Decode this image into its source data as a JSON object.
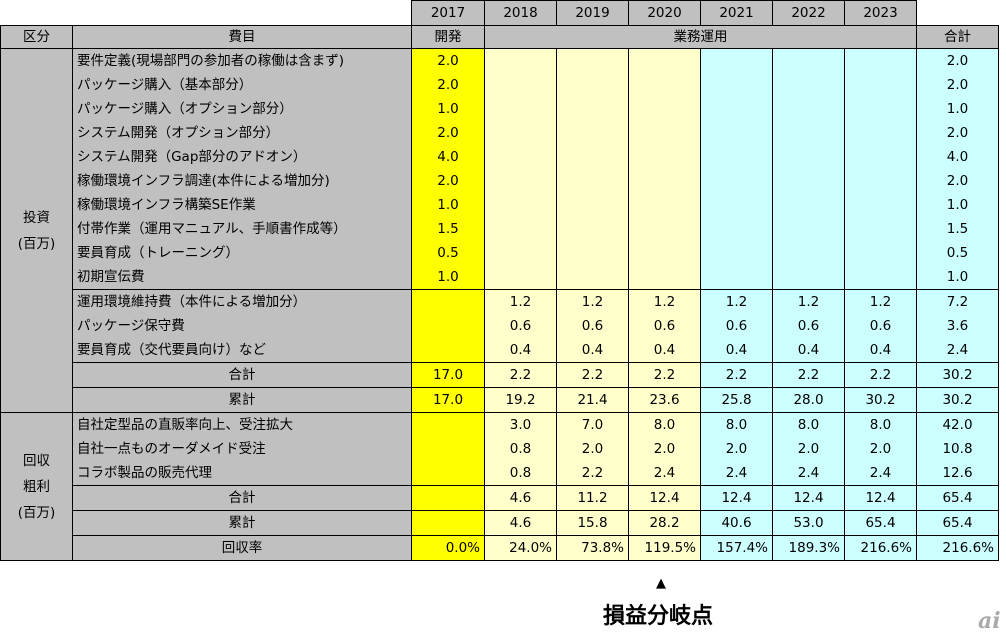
{
  "header": {
    "years": [
      "2017",
      "2018",
      "2019",
      "2020",
      "2021",
      "2022",
      "2023"
    ],
    "category_label": "区分",
    "item_label": "費目",
    "dev_label": "開発",
    "ops_label": "業務運用",
    "total_label": "合計"
  },
  "investment": {
    "category": [
      "投資",
      "(百万)"
    ],
    "initial_items": [
      {
        "label": "要件定義(現場部門の参加者の稼働は含まず)",
        "values": [
          "2.0",
          "",
          "",
          "",
          "",
          "",
          ""
        ],
        "total": "2.0"
      },
      {
        "label": "パッケージ購入（基本部分）",
        "values": [
          "2.0",
          "",
          "",
          "",
          "",
          "",
          ""
        ],
        "total": "2.0"
      },
      {
        "label": "パッケージ購入（オプション部分）",
        "values": [
          "1.0",
          "",
          "",
          "",
          "",
          "",
          ""
        ],
        "total": "1.0"
      },
      {
        "label": "システム開発（オプション部分）",
        "values": [
          "2.0",
          "",
          "",
          "",
          "",
          "",
          ""
        ],
        "total": "2.0"
      },
      {
        "label": "システム開発（Gap部分のアドオン）",
        "values": [
          "4.0",
          "",
          "",
          "",
          "",
          "",
          ""
        ],
        "total": "4.0"
      },
      {
        "label": "稼働環境インフラ調達(本件による増加分)",
        "values": [
          "2.0",
          "",
          "",
          "",
          "",
          "",
          ""
        ],
        "total": "2.0"
      },
      {
        "label": "稼働環境インフラ構築SE作業",
        "values": [
          "1.0",
          "",
          "",
          "",
          "",
          "",
          ""
        ],
        "total": "1.0"
      },
      {
        "label": "付帯作業（運用マニュアル、手順書作成等）",
        "values": [
          "1.5",
          "",
          "",
          "",
          "",
          "",
          ""
        ],
        "total": "1.5"
      },
      {
        "label": "要員育成（トレーニング）",
        "values": [
          "0.5",
          "",
          "",
          "",
          "",
          "",
          ""
        ],
        "total": "0.5"
      },
      {
        "label": "初期宣伝費",
        "values": [
          "1.0",
          "",
          "",
          "",
          "",
          "",
          ""
        ],
        "total": "1.0"
      }
    ],
    "running_items": [
      {
        "label": "運用環境維持費（本件による増加分）",
        "values": [
          "",
          "1.2",
          "1.2",
          "1.2",
          "1.2",
          "1.2",
          "1.2"
        ],
        "total": "7.2"
      },
      {
        "label": "パッケージ保守費",
        "values": [
          "",
          "0.6",
          "0.6",
          "0.6",
          "0.6",
          "0.6",
          "0.6"
        ],
        "total": "3.6"
      },
      {
        "label": "要員育成（交代要員向け）など",
        "values": [
          "",
          "0.4",
          "0.4",
          "0.4",
          "0.4",
          "0.4",
          "0.4"
        ],
        "total": "2.4"
      }
    ],
    "subtotal": {
      "label": "合計",
      "values": [
        "17.0",
        "2.2",
        "2.2",
        "2.2",
        "2.2",
        "2.2",
        "2.2"
      ],
      "total": "30.2"
    },
    "cumulative": {
      "label": "累計",
      "values": [
        "17.0",
        "19.2",
        "21.4",
        "23.6",
        "25.8",
        "28.0",
        "30.2"
      ],
      "total": "30.2"
    }
  },
  "recovery": {
    "category": [
      "回収",
      "粗利",
      "(百万)"
    ],
    "items": [
      {
        "label": "自社定型品の直販率向上、受注拡大",
        "values": [
          "",
          "3.0",
          "7.0",
          "8.0",
          "8.0",
          "8.0",
          "8.0"
        ],
        "total": "42.0"
      },
      {
        "label": "自社一点ものオーダメイド受注",
        "values": [
          "",
          "0.8",
          "2.0",
          "2.0",
          "2.0",
          "2.0",
          "2.0"
        ],
        "total": "10.8"
      },
      {
        "label": "コラボ製品の販売代理",
        "values": [
          "",
          "0.8",
          "2.2",
          "2.4",
          "2.4",
          "2.4",
          "2.4"
        ],
        "total": "12.6"
      }
    ],
    "subtotal": {
      "label": "合計",
      "values": [
        "",
        "4.6",
        "11.2",
        "12.4",
        "12.4",
        "12.4",
        "12.4"
      ],
      "total": "65.4"
    },
    "cumulative": {
      "label": "累計",
      "values": [
        "",
        "4.6",
        "15.8",
        "28.2",
        "40.6",
        "53.0",
        "65.4"
      ],
      "total": "65.4"
    },
    "rate": {
      "label": "回収率",
      "values": [
        "0.0%",
        "24.0%",
        "73.8%",
        "119.5%",
        "157.4%",
        "189.3%",
        "216.6%"
      ],
      "total": "216.6%"
    }
  },
  "annotation": {
    "marker": "▲",
    "text": "損益分岐点"
  },
  "logo": "ai",
  "colors": {
    "gray": "#c0c0c0",
    "dev_yellow": "#ffff00",
    "light_yellow": "#ffffcc",
    "cyan": "#ccffff"
  }
}
